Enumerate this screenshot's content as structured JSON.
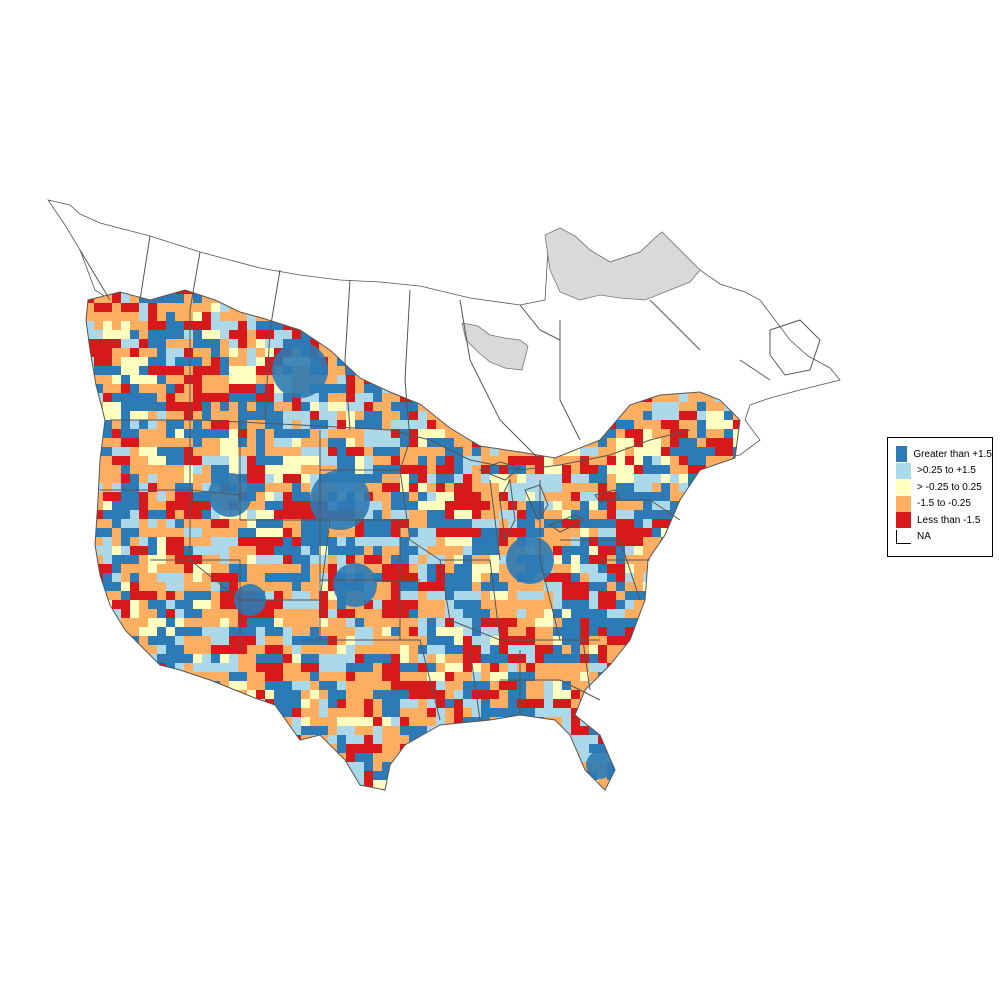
{
  "legend": {
    "items": [
      {
        "label": "Greater than +1.5",
        "color": "#2c7bb6"
      },
      {
        "label": ">0.25 to +1.5",
        "color": "#abd9e9"
      },
      {
        "label": "> -0.25 to 0.25",
        "color": "#ffffbf"
      },
      {
        "label": "-1.5 to -0.25",
        "color": "#fdae61"
      },
      {
        "label": "Less than -1.5",
        "color": "#d7191c"
      },
      {
        "label": "NA",
        "color": "#ffffff"
      }
    ]
  },
  "colors": {
    "boundary": "#555555",
    "no_data_region": "#d9d9d9",
    "background": "#ffffff"
  }
}
